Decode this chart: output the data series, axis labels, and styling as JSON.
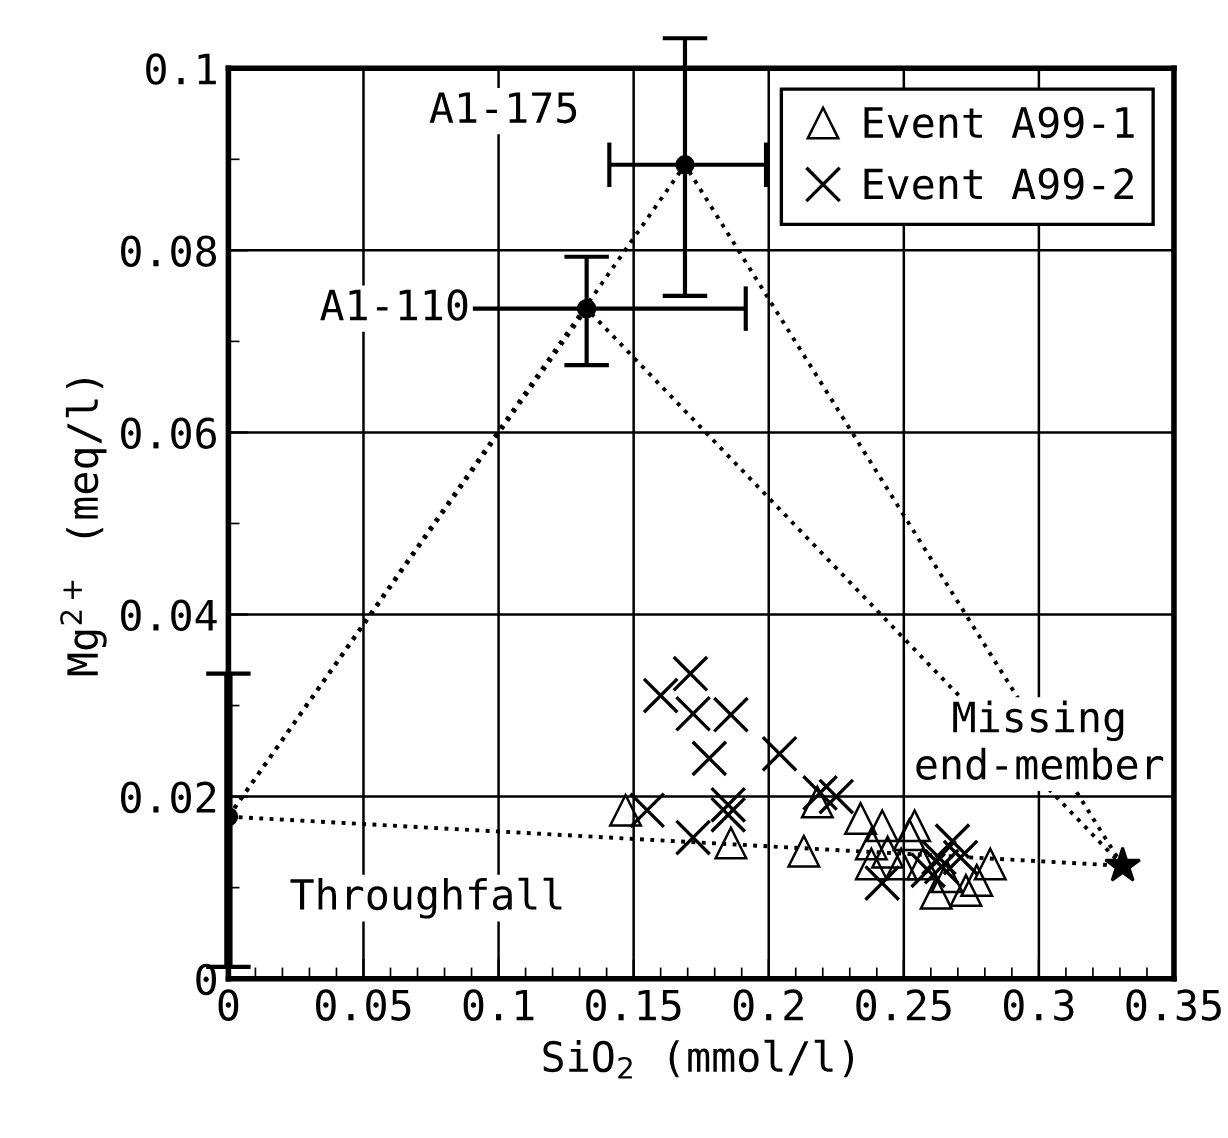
{
  "chart_data": {
    "type": "scatter",
    "xlabel": "SiO$_{2}$ (mmol/l)",
    "ylabel": "Mg$^{2+}$ (meq/l)",
    "xlim": [
      0,
      0.35
    ],
    "ylim": [
      0,
      0.1
    ],
    "xticks": [
      0,
      0.05,
      0.1,
      0.15,
      0.2,
      0.25,
      0.3,
      0.35
    ],
    "yticks": [
      0,
      0.02,
      0.04,
      0.06,
      0.08,
      0.1
    ],
    "grid": true,
    "legend": "top right",
    "series": [
      {
        "type": "line",
        "line_style": "dotted",
        "marker": "none",
        "color": "#000000",
        "x": [
          0,
          0.169,
          0.331
        ],
        "values": [
          0.0178,
          0.0894,
          0.0124
        ]
      },
      {
        "type": "line",
        "line_style": "dotted",
        "marker": "none",
        "color": "#000000",
        "x": [
          0,
          0.1326,
          0.331
        ],
        "values": [
          0.0178,
          0.0736,
          0.0124
        ]
      },
      {
        "type": "line",
        "line_style": "dotted",
        "marker": "none",
        "color": "#000000",
        "x": [
          0,
          0.331
        ],
        "values": [
          0.0178,
          0.0124
        ]
      },
      {
        "name": "Event A99-1",
        "marker": "triangle",
        "color": "#000000",
        "x": [
          0.147,
          0.186,
          0.213,
          0.218,
          0.234,
          0.242,
          0.252,
          0.254,
          0.238,
          0.238,
          0.244,
          0.257,
          0.262,
          0.273,
          0.277,
          0.282,
          0.249,
          0.266
        ],
        "values": [
          0.0185,
          0.0149,
          0.014,
          0.0194,
          0.0176,
          0.0168,
          0.0158,
          0.0168,
          0.0148,
          0.0126,
          0.0139,
          0.0126,
          0.0094,
          0.0097,
          0.0108,
          0.0126,
          0.0126,
          0.0112
        ]
      },
      {
        "name": "Event A99-2",
        "marker": "cross",
        "color": "#000000",
        "x": [
          0.171,
          0.16,
          0.172,
          0.186,
          0.178,
          0.204,
          0.155,
          0.185,
          0.185,
          0.172,
          0.219,
          0.225,
          0.242,
          0.268,
          0.263,
          0.264,
          0.259,
          0.271
        ],
        "values": [
          0.0335,
          0.0311,
          0.0291,
          0.029,
          0.0242,
          0.0247,
          0.0185,
          0.0191,
          0.018,
          0.0155,
          0.0204,
          0.02,
          0.0105,
          0.0151,
          0.0133,
          0.0123,
          0.0119,
          0.0133
        ]
      },
      {
        "marker": "circle",
        "color": "#000000",
        "x": [
          0,
          0.1326,
          0.169
        ],
        "values": [
          0.0178,
          0.0736,
          0.0894
        ],
        "errors": [
          [
            0.0013,
            0.0335
          ],
          [
            0.0674,
            0.0793
          ],
          [
            0.075,
            0.1033
          ]
        ],
        "xerrors": [
          null,
          [
            0.0752,
            0.1915
          ],
          [
            0.141,
            0.199
          ]
        ]
      },
      {
        "marker": "star",
        "color": "#000000",
        "x": [
          0.331
        ],
        "values": [
          0.0124
        ]
      }
    ],
    "annotations": [
      {
        "text": "A1-175",
        "x": 0.169,
        "y": 0.0894
      },
      {
        "text": "A1-110",
        "x": 0.1326,
        "y": 0.0736
      },
      {
        "text": "Throughfall",
        "x": 0,
        "y": 0.0178
      },
      {
        "text": "Missing\nend-member",
        "x": 0.331,
        "y": 0.0124
      }
    ]
  }
}
